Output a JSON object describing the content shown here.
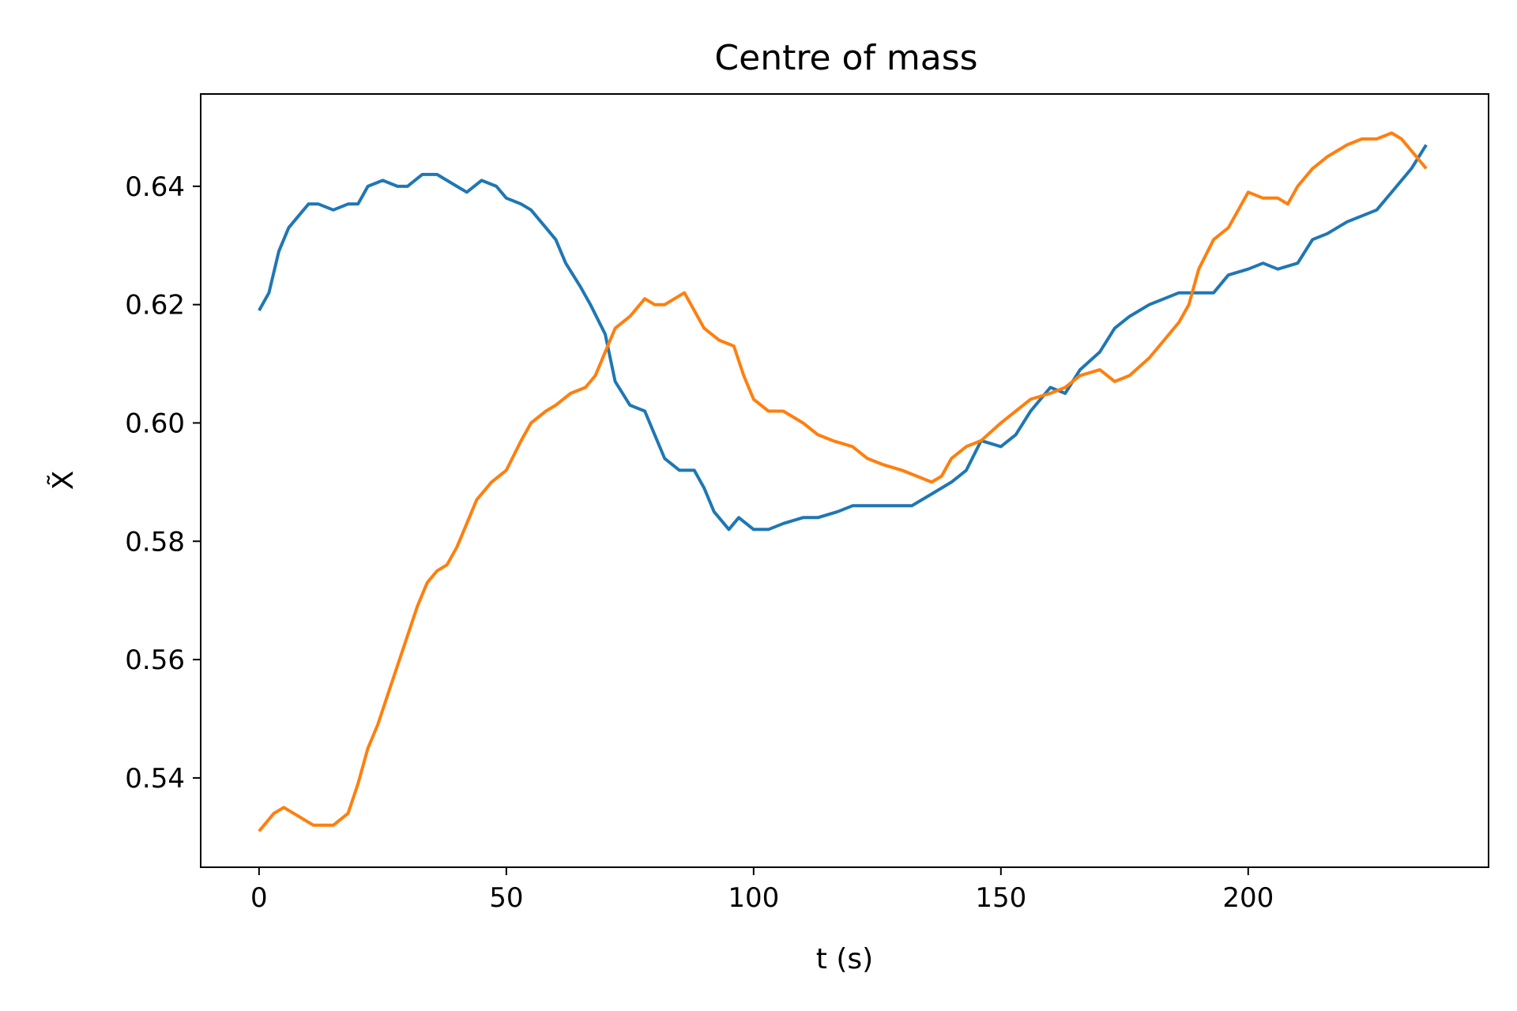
{
  "chart_data": {
    "type": "line",
    "title": "Centre of mass",
    "xlabel": "t (s)",
    "ylabel": "X̃",
    "xlim": [
      -11.8,
      248.6
    ],
    "ylim": [
      0.5249,
      0.6556
    ],
    "xticks": [
      0,
      50,
      100,
      150,
      200
    ],
    "xtick_labels": [
      "0",
      "50",
      "100",
      "150",
      "200"
    ],
    "yticks": [
      0.54,
      0.56,
      0.58,
      0.6,
      0.62,
      0.64
    ],
    "ytick_labels": [
      "0.54",
      "0.56",
      "0.58",
      "0.60",
      "0.62",
      "0.64"
    ],
    "grid": false,
    "legend": "none",
    "series": [
      {
        "color": "#1f77b4",
        "x": [
          0,
          2,
          4,
          6,
          8,
          10,
          12,
          15,
          18,
          20,
          22,
          25,
          28,
          30,
          33,
          36,
          40,
          42,
          45,
          48,
          50,
          53,
          55,
          58,
          60,
          62,
          65,
          67,
          70,
          72,
          75,
          78,
          80,
          82,
          85,
          88,
          90,
          92,
          95,
          97,
          100,
          103,
          106,
          110,
          113,
          117,
          120,
          124,
          128,
          132,
          136,
          140,
          143,
          146,
          150,
          153,
          156,
          160,
          163,
          166,
          170,
          173,
          176,
          180,
          183,
          186,
          190,
          193,
          196,
          200,
          203,
          206,
          210,
          213,
          216,
          220,
          223,
          226,
          230,
          233,
          236
        ],
        "values": [
          0.619,
          0.622,
          0.629,
          0.633,
          0.635,
          0.637,
          0.637,
          0.636,
          0.637,
          0.637,
          0.64,
          0.641,
          0.64,
          0.64,
          0.642,
          0.642,
          0.64,
          0.639,
          0.641,
          0.64,
          0.638,
          0.637,
          0.636,
          0.633,
          0.631,
          0.627,
          0.623,
          0.62,
          0.615,
          0.607,
          0.603,
          0.602,
          0.598,
          0.594,
          0.592,
          0.592,
          0.589,
          0.585,
          0.582,
          0.584,
          0.582,
          0.582,
          0.583,
          0.584,
          0.584,
          0.585,
          0.586,
          0.586,
          0.586,
          0.586,
          0.588,
          0.59,
          0.592,
          0.597,
          0.596,
          0.598,
          0.602,
          0.606,
          0.605,
          0.609,
          0.612,
          0.616,
          0.618,
          0.62,
          0.621,
          0.622,
          0.622,
          0.622,
          0.625,
          0.626,
          0.627,
          0.626,
          0.627,
          0.631,
          0.632,
          0.634,
          0.635,
          0.636,
          0.64,
          0.643,
          0.647
        ]
      },
      {
        "color": "#ff7f0e",
        "x": [
          0,
          2,
          3,
          5,
          7,
          9,
          11,
          13,
          15,
          18,
          20,
          22,
          24,
          26,
          28,
          30,
          32,
          34,
          36,
          38,
          40,
          42,
          44,
          47,
          50,
          53,
          55,
          58,
          60,
          63,
          66,
          68,
          70,
          72,
          75,
          78,
          80,
          82,
          84,
          86,
          88,
          90,
          93,
          96,
          98,
          100,
          103,
          106,
          110,
          113,
          116,
          120,
          123,
          126,
          130,
          133,
          136,
          138,
          140,
          143,
          146,
          150,
          153,
          156,
          160,
          163,
          166,
          170,
          173,
          176,
          180,
          183,
          186,
          188,
          190,
          193,
          196,
          198,
          200,
          203,
          206,
          208,
          210,
          213,
          216,
          218,
          220,
          223,
          226,
          229,
          231,
          234,
          236
        ],
        "values": [
          0.531,
          0.533,
          0.534,
          0.535,
          0.534,
          0.533,
          0.532,
          0.532,
          0.532,
          0.534,
          0.539,
          0.545,
          0.549,
          0.554,
          0.559,
          0.564,
          0.569,
          0.573,
          0.575,
          0.576,
          0.579,
          0.583,
          0.587,
          0.59,
          0.592,
          0.597,
          0.6,
          0.602,
          0.603,
          0.605,
          0.606,
          0.608,
          0.612,
          0.616,
          0.618,
          0.621,
          0.62,
          0.62,
          0.621,
          0.622,
          0.619,
          0.616,
          0.614,
          0.613,
          0.608,
          0.604,
          0.602,
          0.602,
          0.6,
          0.598,
          0.597,
          0.596,
          0.594,
          0.593,
          0.592,
          0.591,
          0.59,
          0.591,
          0.594,
          0.596,
          0.597,
          0.6,
          0.602,
          0.604,
          0.605,
          0.606,
          0.608,
          0.609,
          0.607,
          0.608,
          0.611,
          0.614,
          0.617,
          0.62,
          0.626,
          0.631,
          0.633,
          0.636,
          0.639,
          0.638,
          0.638,
          0.637,
          0.64,
          0.643,
          0.645,
          0.646,
          0.647,
          0.648,
          0.648,
          0.649,
          0.648,
          0.645,
          0.643
        ]
      }
    ]
  }
}
